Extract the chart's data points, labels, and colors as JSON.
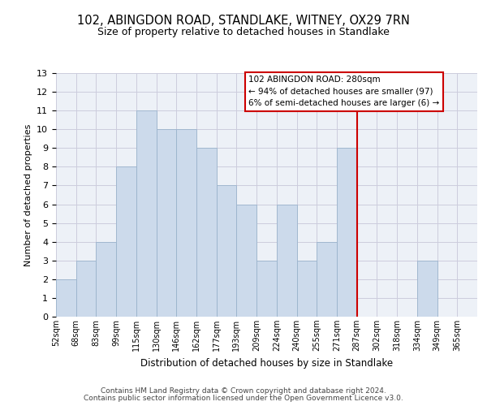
{
  "title": "102, ABINGDON ROAD, STANDLAKE, WITNEY, OX29 7RN",
  "subtitle": "Size of property relative to detached houses in Standlake",
  "xlabel": "Distribution of detached houses by size in Standlake",
  "ylabel": "Number of detached properties",
  "bar_color": "#ccdaeb",
  "bar_edge_color": "#9ab3cc",
  "tick_labels": [
    "52sqm",
    "68sqm",
    "83sqm",
    "99sqm",
    "115sqm",
    "130sqm",
    "146sqm",
    "162sqm",
    "177sqm",
    "193sqm",
    "209sqm",
    "224sqm",
    "240sqm",
    "255sqm",
    "271sqm",
    "287sqm",
    "302sqm",
    "318sqm",
    "334sqm",
    "349sqm",
    "365sqm"
  ],
  "values": [
    2,
    3,
    4,
    8,
    11,
    10,
    10,
    9,
    7,
    6,
    3,
    6,
    3,
    4,
    9,
    0,
    0,
    0,
    3,
    0
  ],
  "ylim": [
    0,
    13
  ],
  "yticks": [
    0,
    1,
    2,
    3,
    4,
    5,
    6,
    7,
    8,
    9,
    10,
    11,
    12,
    13
  ],
  "marker_label": "102 ABINGDON ROAD: 280sqm",
  "annotation_line1": "← 94% of detached houses are smaller (97)",
  "annotation_line2": "6% of semi-detached houses are larger (6) →",
  "marker_color": "#cc0000",
  "grid_color": "#ccccdd",
  "bg_color": "#edf1f7",
  "footer1": "Contains HM Land Registry data © Crown copyright and database right 2024.",
  "footer2": "Contains public sector information licensed under the Open Government Licence v3.0."
}
